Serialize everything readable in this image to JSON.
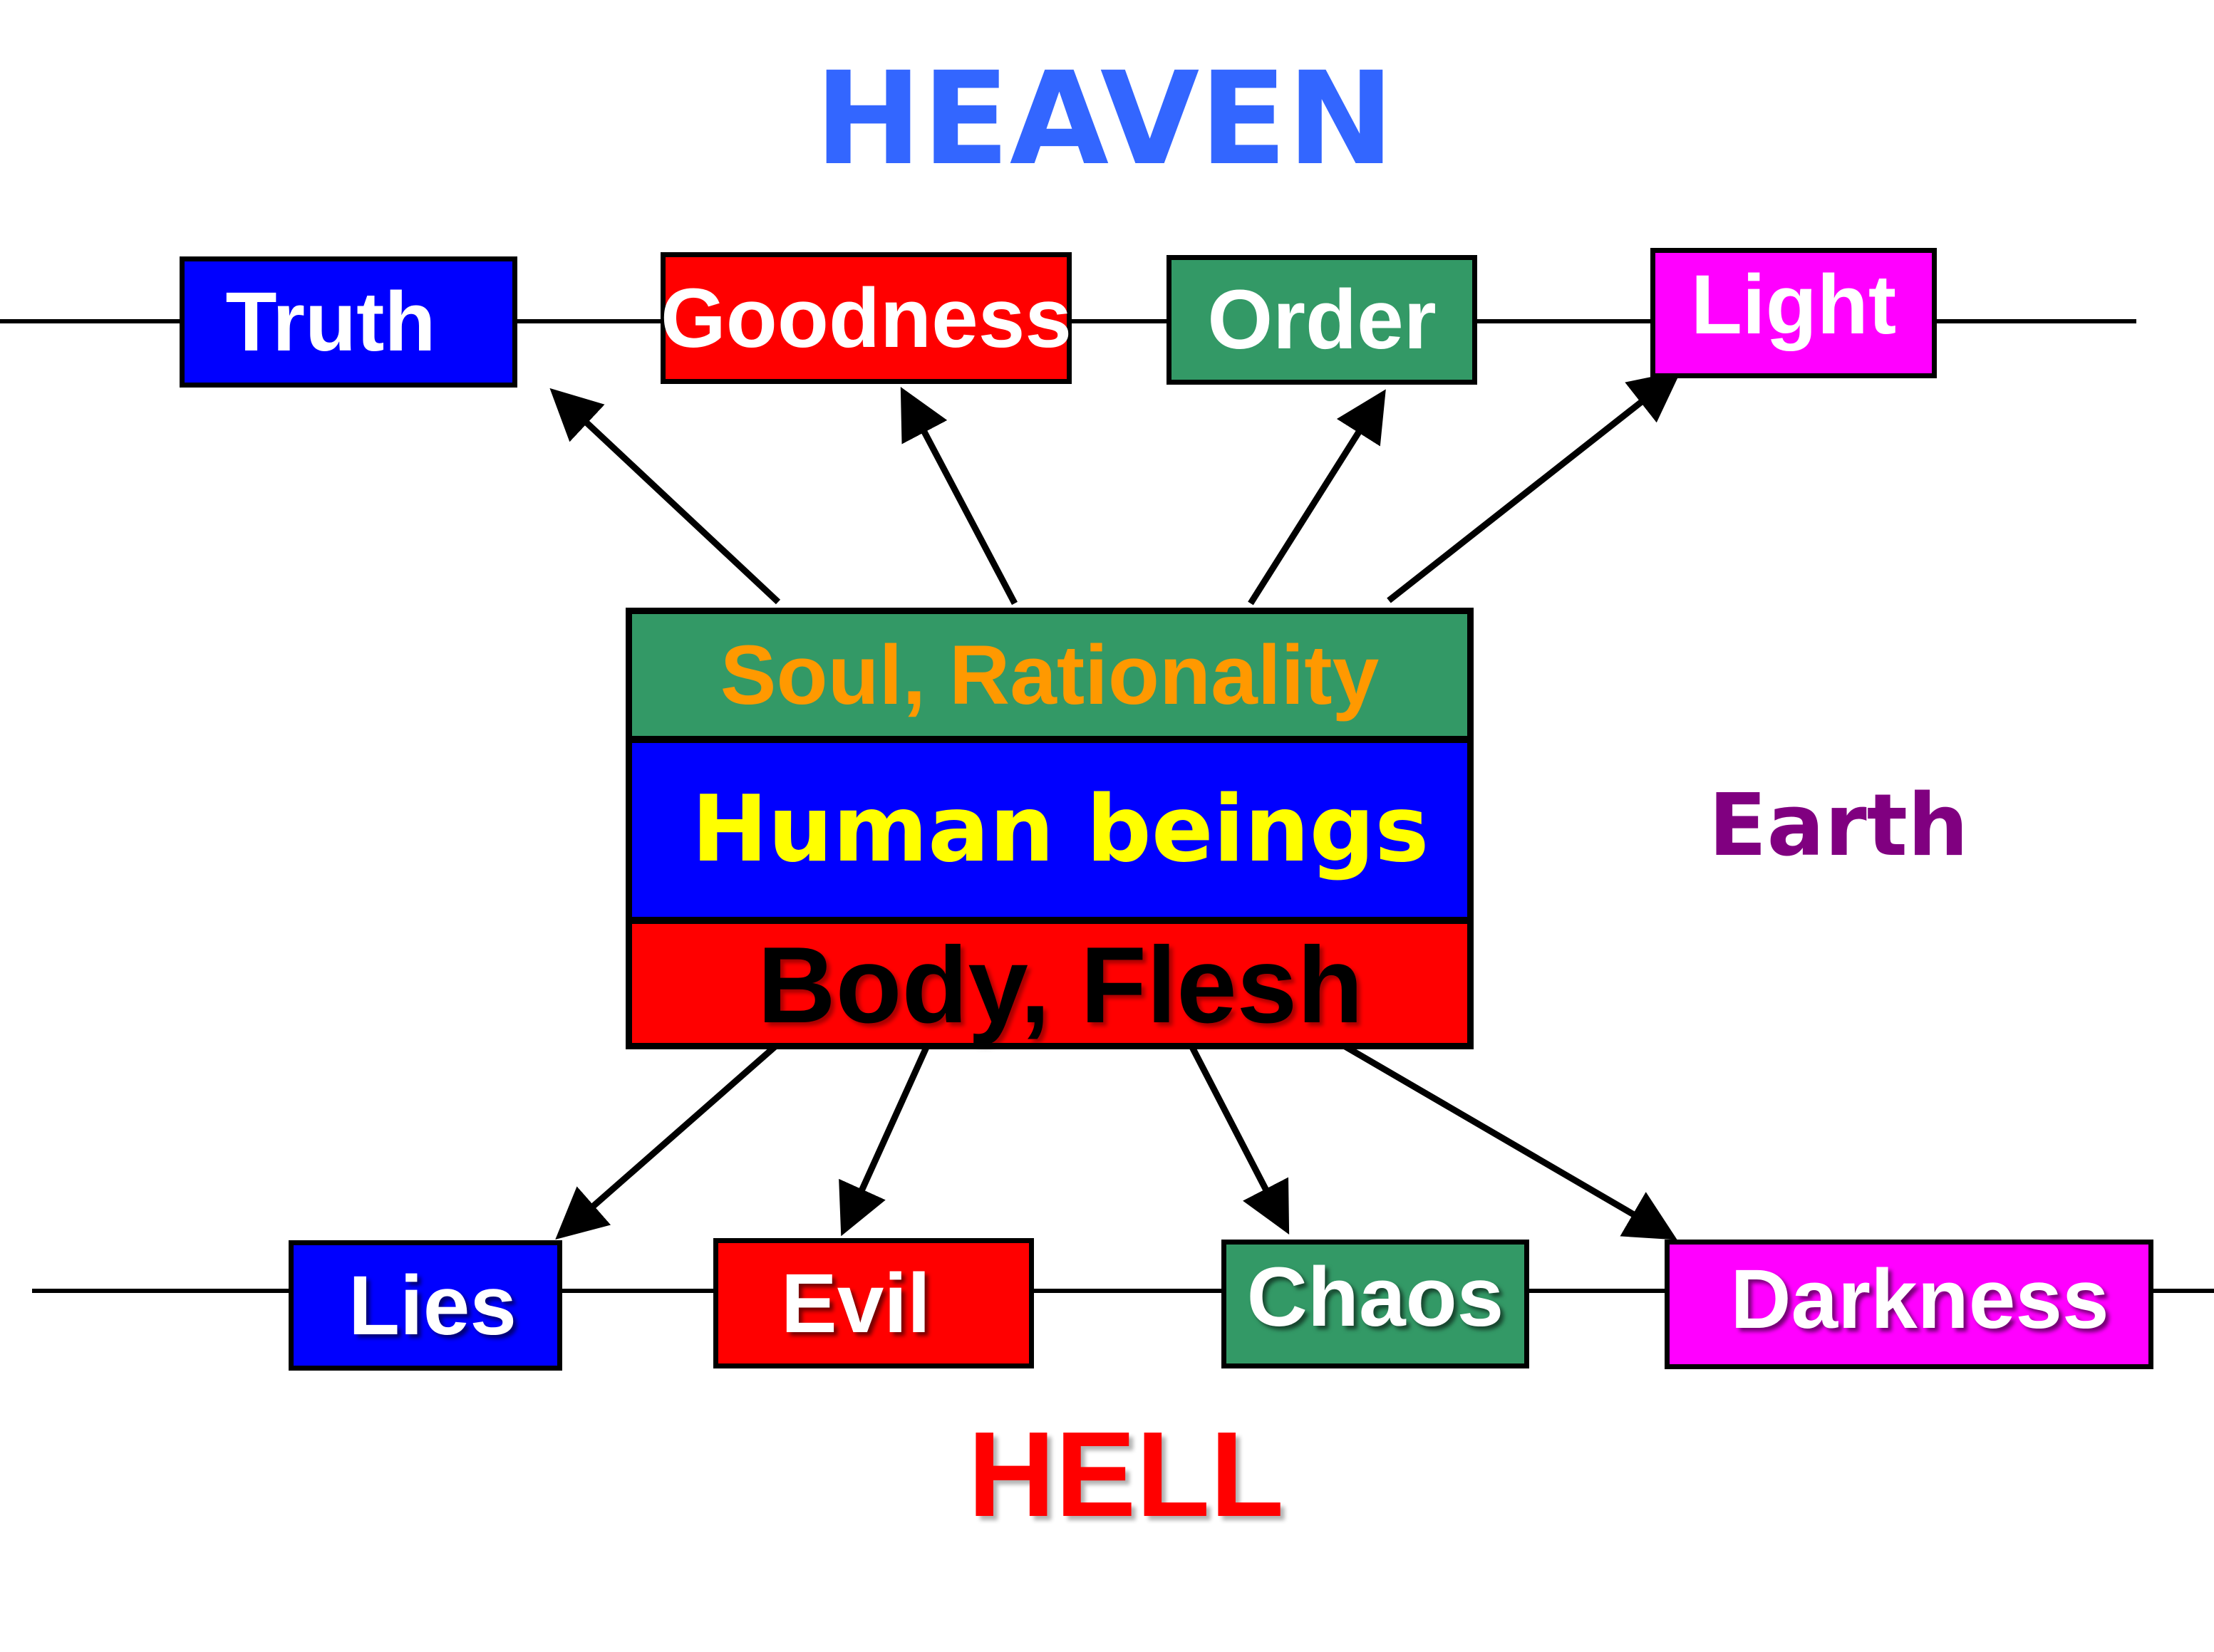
{
  "heaven_label": "HEAVEN",
  "hell_label": "HELL",
  "earth_label": "Earth",
  "heaven_virtues": [
    {
      "label": "Truth",
      "fill": "#0000ff"
    },
    {
      "label": "Goodness",
      "fill": "#ff0000"
    },
    {
      "label": "Order",
      "fill": "#339966"
    },
    {
      "label": "Light",
      "fill": "#ff00ff"
    }
  ],
  "hell_vices": [
    {
      "label": "Lies",
      "fill": "#0000ff"
    },
    {
      "label": "Evil",
      "fill": "#ff0000"
    },
    {
      "label": "Chaos",
      "fill": "#339966"
    },
    {
      "label": "Darkness",
      "fill": "#ff00ff"
    }
  ],
  "human": {
    "soul_label": "Soul, Rationality",
    "human_label": "Human beings",
    "body_label": "Body, Flesh"
  },
  "colors": {
    "heaven_text": "#3366ff",
    "hell_text": "#ff0000",
    "earth_text": "#800080",
    "soul_fill": "#339966",
    "soul_text": "#ff9900",
    "human_fill": "#0000ff",
    "human_text": "#ffff00",
    "body_fill": "#ff0000",
    "body_text": "#000000"
  }
}
